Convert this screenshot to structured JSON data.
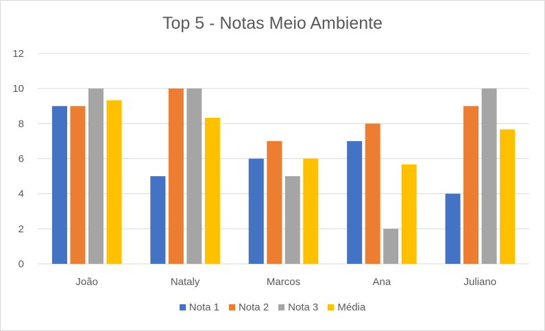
{
  "chart_data": {
    "type": "bar",
    "title": "Top 5 - Notas Meio Ambiente",
    "xlabel": "",
    "ylabel": "",
    "categories": [
      "João",
      "Nataly",
      "Marcos",
      "Ana",
      "Juliano"
    ],
    "series": [
      {
        "name": "Nota 1",
        "color": "#4472C4",
        "values": [
          9,
          5,
          6,
          7,
          4
        ]
      },
      {
        "name": "Nota 2",
        "color": "#ED7D31",
        "values": [
          9,
          10,
          7,
          8,
          9
        ]
      },
      {
        "name": "Nota 3",
        "color": "#A5A5A5",
        "values": [
          10,
          10,
          5,
          2,
          10
        ]
      },
      {
        "name": "Média",
        "color": "#FFC000",
        "values": [
          9.33,
          8.33,
          6,
          5.67,
          7.67
        ]
      }
    ],
    "ylim": [
      0,
      12
    ],
    "yticks": [
      0,
      2,
      4,
      6,
      8,
      10,
      12
    ],
    "grid": true,
    "legend_position": "bottom"
  }
}
